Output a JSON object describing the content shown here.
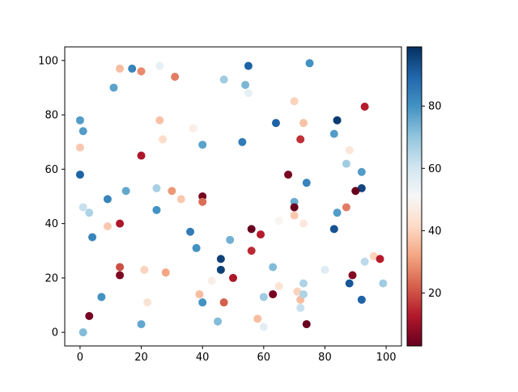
{
  "chart_data": {
    "type": "scatter",
    "title": "",
    "xlabel": "",
    "ylabel": "",
    "xlim": [
      -5,
      105
    ],
    "ylim": [
      -5,
      105
    ],
    "x_ticks": [
      0,
      20,
      40,
      60,
      80,
      100
    ],
    "y_ticks": [
      0,
      20,
      40,
      60,
      80,
      100
    ],
    "grid": false,
    "colormap": "RdBu",
    "colorbar": {
      "range": [
        3,
        99
      ],
      "ticks": [
        20,
        40,
        60,
        80
      ]
    },
    "points": [
      {
        "x": 0,
        "y": 78,
        "c": 78
      },
      {
        "x": 1,
        "y": 74,
        "c": 78
      },
      {
        "x": 0,
        "y": 68,
        "c": 38
      },
      {
        "x": 0,
        "y": 58,
        "c": 90
      },
      {
        "x": 1,
        "y": 46,
        "c": 62
      },
      {
        "x": 3,
        "y": 44,
        "c": 66
      },
      {
        "x": 4,
        "y": 35,
        "c": 83
      },
      {
        "x": 1,
        "y": 0,
        "c": 72
      },
      {
        "x": 3,
        "y": 6,
        "c": 5
      },
      {
        "x": 7,
        "y": 13,
        "c": 80
      },
      {
        "x": 9,
        "y": 49,
        "c": 83
      },
      {
        "x": 9,
        "y": 39,
        "c": 38
      },
      {
        "x": 11,
        "y": 90,
        "c": 77
      },
      {
        "x": 13,
        "y": 97,
        "c": 36
      },
      {
        "x": 17,
        "y": 97,
        "c": 83
      },
      {
        "x": 20,
        "y": 96,
        "c": 28
      },
      {
        "x": 13,
        "y": 40,
        "c": 12
      },
      {
        "x": 15,
        "y": 52,
        "c": 76
      },
      {
        "x": 13,
        "y": 24,
        "c": 20
      },
      {
        "x": 13,
        "y": 21,
        "c": 6
      },
      {
        "x": 20,
        "y": 65,
        "c": 12
      },
      {
        "x": 20,
        "y": 3,
        "c": 76
      },
      {
        "x": 21,
        "y": 23,
        "c": 40
      },
      {
        "x": 22,
        "y": 11,
        "c": 44
      },
      {
        "x": 26,
        "y": 98,
        "c": 55
      },
      {
        "x": 31,
        "y": 94,
        "c": 26
      },
      {
        "x": 26,
        "y": 78,
        "c": 37
      },
      {
        "x": 27,
        "y": 71,
        "c": 42
      },
      {
        "x": 25,
        "y": 53,
        "c": 67
      },
      {
        "x": 25,
        "y": 45,
        "c": 80
      },
      {
        "x": 30,
        "y": 52,
        "c": 30
      },
      {
        "x": 33,
        "y": 49,
        "c": 38
      },
      {
        "x": 28,
        "y": 22,
        "c": 32
      },
      {
        "x": 37,
        "y": 75,
        "c": 48
      },
      {
        "x": 40,
        "y": 69,
        "c": 77
      },
      {
        "x": 36,
        "y": 37,
        "c": 85
      },
      {
        "x": 40,
        "y": 50,
        "c": 5
      },
      {
        "x": 40,
        "y": 48,
        "c": 24
      },
      {
        "x": 38,
        "y": 31,
        "c": 80
      },
      {
        "x": 39,
        "y": 14,
        "c": 36
      },
      {
        "x": 40,
        "y": 11,
        "c": 80
      },
      {
        "x": 43,
        "y": 19,
        "c": 48
      },
      {
        "x": 47,
        "y": 93,
        "c": 68
      },
      {
        "x": 55,
        "y": 98,
        "c": 90
      },
      {
        "x": 54,
        "y": 91,
        "c": 73
      },
      {
        "x": 55,
        "y": 88,
        "c": 55
      },
      {
        "x": 53,
        "y": 70,
        "c": 85
      },
      {
        "x": 46,
        "y": 27,
        "c": 96
      },
      {
        "x": 46,
        "y": 23,
        "c": 96
      },
      {
        "x": 50,
        "y": 20,
        "c": 12
      },
      {
        "x": 47,
        "y": 11,
        "c": 22
      },
      {
        "x": 45,
        "y": 4,
        "c": 72
      },
      {
        "x": 49,
        "y": 34,
        "c": 74
      },
      {
        "x": 56,
        "y": 38,
        "c": 3
      },
      {
        "x": 59,
        "y": 36,
        "c": 13
      },
      {
        "x": 56,
        "y": 30,
        "c": 15
      },
      {
        "x": 63,
        "y": 24,
        "c": 72
      },
      {
        "x": 60,
        "y": 13,
        "c": 68
      },
      {
        "x": 58,
        "y": 5,
        "c": 36
      },
      {
        "x": 60,
        "y": 2,
        "c": 56
      },
      {
        "x": 64,
        "y": 77,
        "c": 90
      },
      {
        "x": 70,
        "y": 85,
        "c": 40
      },
      {
        "x": 73,
        "y": 77,
        "c": 37
      },
      {
        "x": 72,
        "y": 71,
        "c": 16
      },
      {
        "x": 68,
        "y": 58,
        "c": 5
      },
      {
        "x": 65,
        "y": 41,
        "c": 50
      },
      {
        "x": 70,
        "y": 48,
        "c": 75
      },
      {
        "x": 70,
        "y": 46,
        "c": 3
      },
      {
        "x": 70,
        "y": 43,
        "c": 38
      },
      {
        "x": 73,
        "y": 40,
        "c": 46
      },
      {
        "x": 74,
        "y": 55,
        "c": 83
      },
      {
        "x": 63,
        "y": 14,
        "c": 5
      },
      {
        "x": 65,
        "y": 17,
        "c": 44
      },
      {
        "x": 71,
        "y": 15,
        "c": 40
      },
      {
        "x": 72,
        "y": 12,
        "c": 36
      },
      {
        "x": 73,
        "y": 18,
        "c": 66
      },
      {
        "x": 73,
        "y": 14,
        "c": 66
      },
      {
        "x": 72,
        "y": 9,
        "c": 62
      },
      {
        "x": 74,
        "y": 3,
        "c": 3
      },
      {
        "x": 75,
        "y": 99,
        "c": 80
      },
      {
        "x": 84,
        "y": 78,
        "c": 97
      },
      {
        "x": 83,
        "y": 73,
        "c": 78
      },
      {
        "x": 88,
        "y": 67,
        "c": 45
      },
      {
        "x": 87,
        "y": 62,
        "c": 68
      },
      {
        "x": 84,
        "y": 44,
        "c": 78
      },
      {
        "x": 87,
        "y": 46,
        "c": 26
      },
      {
        "x": 83,
        "y": 38,
        "c": 93
      },
      {
        "x": 80,
        "y": 23,
        "c": 57
      },
      {
        "x": 88,
        "y": 18,
        "c": 92
      },
      {
        "x": 89,
        "y": 21,
        "c": 7
      },
      {
        "x": 93,
        "y": 83,
        "c": 13
      },
      {
        "x": 92,
        "y": 59,
        "c": 78
      },
      {
        "x": 92,
        "y": 53,
        "c": 95
      },
      {
        "x": 90,
        "y": 52,
        "c": 3
      },
      {
        "x": 93,
        "y": 26,
        "c": 64
      },
      {
        "x": 96,
        "y": 28,
        "c": 40
      },
      {
        "x": 98,
        "y": 27,
        "c": 13
      },
      {
        "x": 99,
        "y": 18,
        "c": 68
      },
      {
        "x": 92,
        "y": 12,
        "c": 90
      }
    ]
  }
}
